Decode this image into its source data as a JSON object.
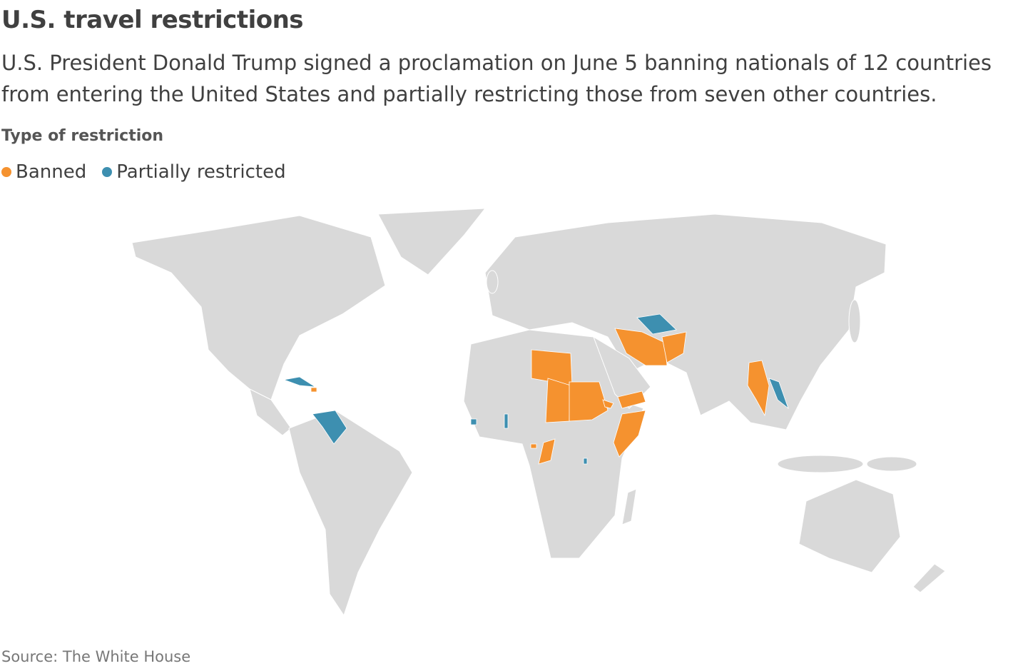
{
  "header": {
    "title": "U.S. travel restrictions",
    "subtitle": "U.S. President Donald Trump signed a proclamation on June 5 banning nationals of 12 countries from entering the United States and partially restricting those from seven other countries."
  },
  "legend": {
    "title": "Type of restriction",
    "items": [
      {
        "name": "Banned",
        "color": "#f5922f"
      },
      {
        "name": "Partially restricted",
        "color": "#3d8fb0"
      }
    ]
  },
  "source": "Source: The White House"
}
